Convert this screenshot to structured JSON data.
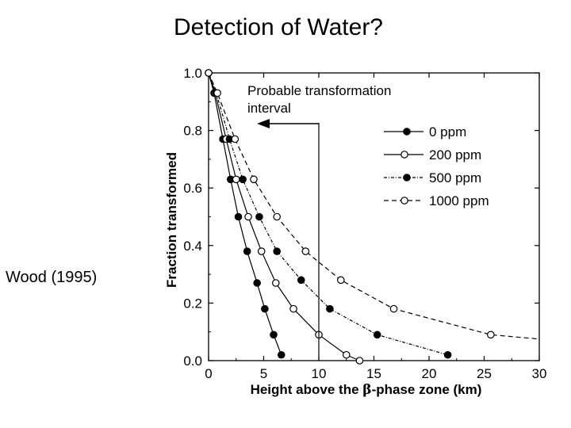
{
  "slide": {
    "title": "Detection of Water?",
    "citation": "Wood (1995)"
  },
  "chart_data": {
    "type": "line",
    "xlabel_prefix": "Height above the ",
    "xlabel_symbol": "β",
    "xlabel_suffix": "-phase zone (km)",
    "ylabel": "Fraction transformed",
    "xlim": [
      0,
      30
    ],
    "ylim": [
      0,
      1.0
    ],
    "x_ticks": [
      0,
      5,
      10,
      15,
      20,
      25,
      30
    ],
    "y_ticks": [
      0.0,
      0.2,
      0.4,
      0.6,
      0.8,
      1.0
    ],
    "y_tick_labels": [
      "0.0",
      "0.2",
      "0.4",
      "0.6",
      "0.8",
      "1.0"
    ],
    "grid": false,
    "legend_position": "top-right",
    "annotation": {
      "text_line1": "Probable transformation",
      "text_line2": "interval",
      "x": 10
    },
    "series": [
      {
        "name": "0 ppm",
        "marker": "filled",
        "dash": "none",
        "x": [
          0,
          0.5,
          1.3,
          2.0,
          2.7,
          3.5,
          4.4,
          5.1,
          5.9,
          6.6
        ],
        "y": [
          1.0,
          0.93,
          0.77,
          0.63,
          0.5,
          0.38,
          0.27,
          0.18,
          0.09,
          0.02
        ]
      },
      {
        "name": "200 ppm",
        "marker": "open",
        "dash": "none",
        "x": [
          0,
          0.6,
          1.6,
          2.5,
          3.6,
          4.8,
          6.1,
          7.7,
          10.0,
          12.5,
          13.7
        ],
        "y": [
          1.0,
          0.93,
          0.77,
          0.63,
          0.5,
          0.38,
          0.27,
          0.18,
          0.09,
          0.02,
          0.0
        ]
      },
      {
        "name": "500 ppm",
        "marker": "filled",
        "dash": "dashdot",
        "x": [
          0,
          0.7,
          1.9,
          3.1,
          4.6,
          6.2,
          8.4,
          11.0,
          15.3,
          21.7
        ],
        "y": [
          1.0,
          0.93,
          0.77,
          0.63,
          0.5,
          0.38,
          0.28,
          0.18,
          0.09,
          0.02
        ]
      },
      {
        "name": "1000 ppm",
        "marker": "open",
        "dash": "dashed",
        "x": [
          0,
          0.8,
          2.4,
          4.1,
          6.2,
          8.8,
          12.0,
          16.8,
          25.6,
          30.0
        ],
        "y": [
          1.0,
          0.93,
          0.77,
          0.63,
          0.5,
          0.38,
          0.28,
          0.18,
          0.09,
          0.075
        ]
      }
    ]
  }
}
